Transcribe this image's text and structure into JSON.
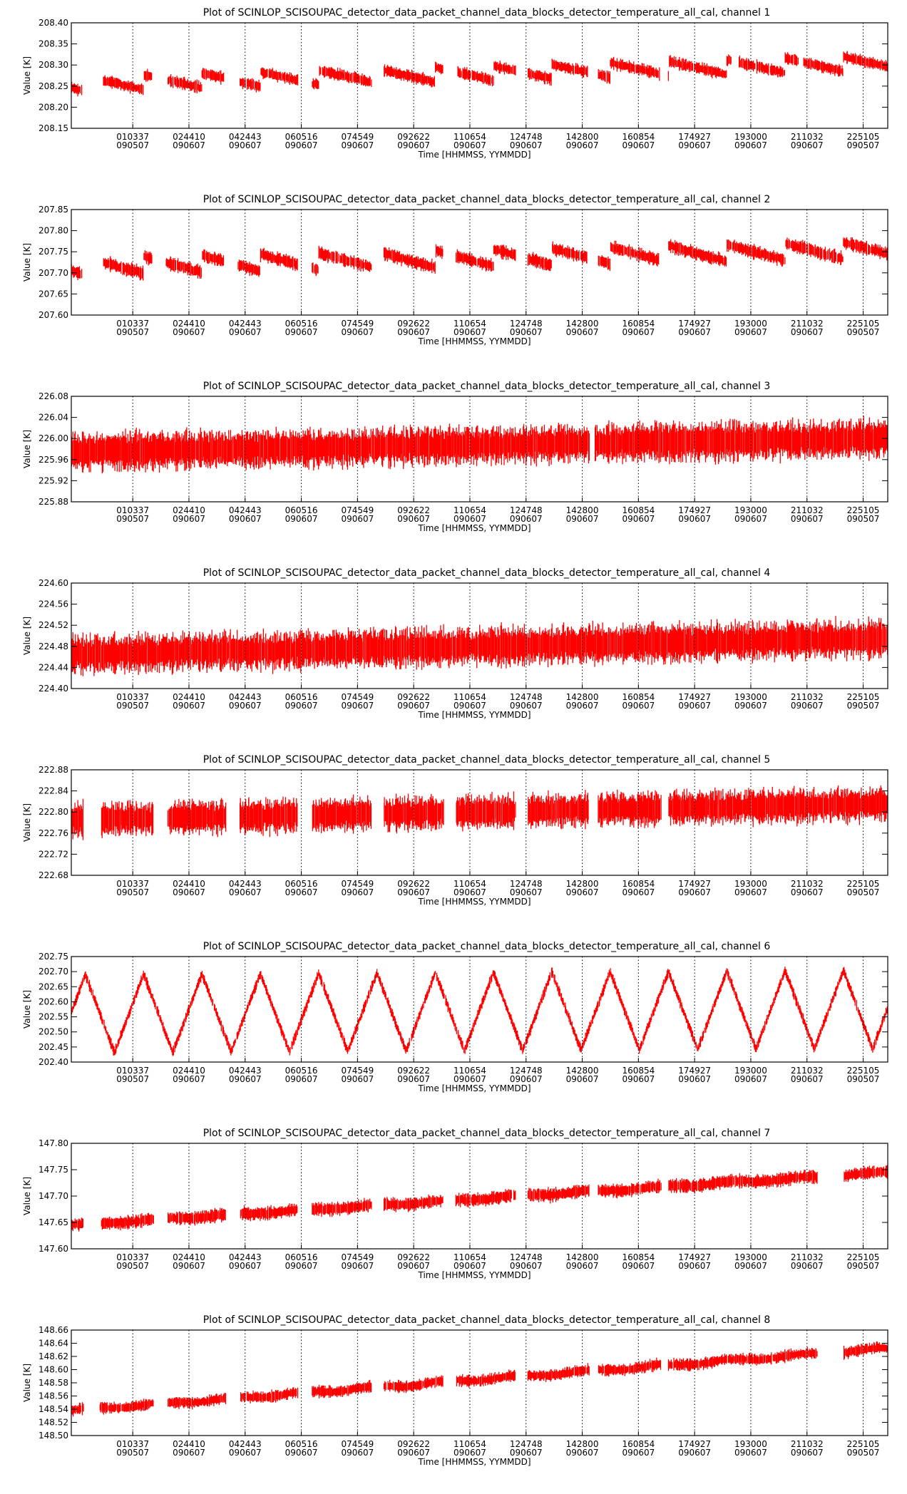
{
  "colors": {
    "data": "#ff0000",
    "axes": "#000000",
    "background": "#ffffff"
  },
  "chart_data": [
    {
      "type": "line",
      "title": "Plot of SCINLOP_SCISOUPAC_detector_data_packet_channel_data_blocks_detector_temperature_all_cal, channel 1",
      "xlabel": "Time [HHMMSS, YYMMDD]",
      "ylabel": "Value [K]",
      "ylim": [
        208.15,
        208.4
      ],
      "yticks": [
        "208.40",
        "208.35",
        "208.30",
        "208.25",
        "208.20",
        "208.15"
      ],
      "xticks": [
        {
          "time": "010337",
          "date": "090507"
        },
        {
          "time": "024410",
          "date": "090607"
        },
        {
          "time": "042443",
          "date": "090607"
        },
        {
          "time": "060516",
          "date": "090607"
        },
        {
          "time": "074549",
          "date": "090607"
        },
        {
          "time": "092622",
          "date": "090607"
        },
        {
          "time": "110654",
          "date": "090607"
        },
        {
          "time": "124748",
          "date": "090607"
        },
        {
          "time": "142800",
          "date": "090607"
        },
        {
          "time": "160854",
          "date": "090607"
        },
        {
          "time": "174927",
          "date": "090607"
        },
        {
          "time": "193000",
          "date": "090607"
        },
        {
          "time": "211032",
          "date": "090607"
        },
        {
          "time": "225105",
          "date": "090507"
        }
      ],
      "grid": "vertical dotted",
      "pattern": "sawtooth",
      "trend": [
        208.255,
        208.305
      ],
      "amplitude": 0.035,
      "noise": 0.018,
      "period": 14,
      "gaps": [
        [
          0.3,
          0.9
        ],
        [
          2.3,
          2.75
        ],
        [
          4.35,
          4.8
        ],
        [
          6.45,
          6.85
        ],
        [
          8.55,
          8.9
        ],
        [
          10.6,
          11.0
        ],
        [
          12.65,
          13.0
        ],
        [
          14.7,
          15.0
        ],
        [
          16.75,
          17.0
        ],
        [
          18.8,
          19.0
        ],
        [
          20.7,
          20.85
        ]
      ]
    },
    {
      "type": "line",
      "title": "Plot of SCINLOP_SCISOUPAC_detector_data_packet_channel_data_blocks_detector_temperature_all_cal, channel 2",
      "xlabel": "Time [HHMMSS, YYMMDD]",
      "ylabel": "Value [K]",
      "ylim": [
        207.6,
        207.85
      ],
      "yticks": [
        "207.85",
        "207.80",
        "207.75",
        "207.70",
        "207.65",
        "207.60"
      ],
      "xticks": [
        {
          "time": "010337",
          "date": "090507"
        },
        {
          "time": "024410",
          "date": "090607"
        },
        {
          "time": "042443",
          "date": "090607"
        },
        {
          "time": "060516",
          "date": "090607"
        },
        {
          "time": "074549",
          "date": "090607"
        },
        {
          "time": "092622",
          "date": "090607"
        },
        {
          "time": "110654",
          "date": "090607"
        },
        {
          "time": "124748",
          "date": "090607"
        },
        {
          "time": "142800",
          "date": "090607"
        },
        {
          "time": "160854",
          "date": "090607"
        },
        {
          "time": "174927",
          "date": "090607"
        },
        {
          "time": "193000",
          "date": "090607"
        },
        {
          "time": "211032",
          "date": "090607"
        },
        {
          "time": "225105",
          "date": "090507"
        }
      ],
      "grid": "vertical dotted",
      "pattern": "sawtooth",
      "trend": [
        207.715,
        207.755
      ],
      "amplitude": 0.04,
      "noise": 0.02,
      "period": 14,
      "gaps": [
        [
          0.3,
          0.9
        ],
        [
          2.3,
          2.7
        ],
        [
          4.35,
          4.75
        ],
        [
          6.45,
          6.85
        ],
        [
          8.55,
          8.9
        ],
        [
          10.6,
          10.95
        ],
        [
          12.65,
          13.0
        ],
        [
          14.7,
          15.0
        ],
        [
          16.75,
          17.0
        ]
      ]
    },
    {
      "type": "line",
      "title": "Plot of SCINLOP_SCISOUPAC_detector_data_packet_channel_data_blocks_detector_temperature_all_cal, channel 3",
      "xlabel": "Time [HHMMSS, YYMMDD]",
      "ylabel": "Value [K]",
      "ylim": [
        225.88,
        226.08
      ],
      "yticks": [
        "226.08",
        "226.04",
        "226.00",
        "225.96",
        "225.92",
        "225.88"
      ],
      "xticks": [
        {
          "time": "010337",
          "date": "090507"
        },
        {
          "time": "024410",
          "date": "090607"
        },
        {
          "time": "042443",
          "date": "090607"
        },
        {
          "time": "060516",
          "date": "090607"
        },
        {
          "time": "074549",
          "date": "090607"
        },
        {
          "time": "092622",
          "date": "090607"
        },
        {
          "time": "110654",
          "date": "090607"
        },
        {
          "time": "124748",
          "date": "090607"
        },
        {
          "time": "142800",
          "date": "090607"
        },
        {
          "time": "160854",
          "date": "090607"
        },
        {
          "time": "174927",
          "date": "090607"
        },
        {
          "time": "193000",
          "date": "090607"
        },
        {
          "time": "211032",
          "date": "090607"
        },
        {
          "time": "225105",
          "date": "090507"
        }
      ],
      "grid": "vertical dotted",
      "pattern": "band",
      "trend": [
        225.975,
        226.0
      ],
      "amplitude": 0.0,
      "noise": 0.045,
      "period": 14,
      "gaps": [
        [
          14.75,
          14.9
        ]
      ]
    },
    {
      "type": "line",
      "title": "Plot of SCINLOP_SCISOUPAC_detector_data_packet_channel_data_blocks_detector_temperature_all_cal, channel 4",
      "xlabel": "Time [HHMMSS, YYMMDD]",
      "ylabel": "Value [K]",
      "ylim": [
        224.4,
        224.6
      ],
      "yticks": [
        "224.60",
        "224.56",
        "224.52",
        "224.48",
        "224.44",
        "224.40"
      ],
      "xticks": [
        {
          "time": "010337",
          "date": "090507"
        },
        {
          "time": "024410",
          "date": "090607"
        },
        {
          "time": "042443",
          "date": "090607"
        },
        {
          "time": "060516",
          "date": "090607"
        },
        {
          "time": "074549",
          "date": "090607"
        },
        {
          "time": "092622",
          "date": "090607"
        },
        {
          "time": "110654",
          "date": "090607"
        },
        {
          "time": "124748",
          "date": "090607"
        },
        {
          "time": "142800",
          "date": "090607"
        },
        {
          "time": "160854",
          "date": "090607"
        },
        {
          "time": "174927",
          "date": "090607"
        },
        {
          "time": "193000",
          "date": "090607"
        },
        {
          "time": "211032",
          "date": "090607"
        },
        {
          "time": "225105",
          "date": "090507"
        }
      ],
      "grid": "vertical dotted",
      "pattern": "band",
      "trend": [
        224.465,
        224.495
      ],
      "amplitude": 0.0,
      "noise": 0.045,
      "period": 14,
      "gaps": []
    },
    {
      "type": "line",
      "title": "Plot of SCINLOP_SCISOUPAC_detector_data_packet_channel_data_blocks_detector_temperature_all_cal, channel 5",
      "xlabel": "Time [HHMMSS, YYMMDD]",
      "ylabel": "Value [K]",
      "ylim": [
        222.68,
        222.88
      ],
      "yticks": [
        "222.88",
        "222.84",
        "222.80",
        "222.76",
        "222.72",
        "222.68"
      ],
      "xticks": [
        {
          "time": "010337",
          "date": "090507"
        },
        {
          "time": "024410",
          "date": "090607"
        },
        {
          "time": "042443",
          "date": "090607"
        },
        {
          "time": "060516",
          "date": "090607"
        },
        {
          "time": "074549",
          "date": "090607"
        },
        {
          "time": "092622",
          "date": "090607"
        },
        {
          "time": "110654",
          "date": "090607"
        },
        {
          "time": "124748",
          "date": "090607"
        },
        {
          "time": "142800",
          "date": "090607"
        },
        {
          "time": "160854",
          "date": "090607"
        },
        {
          "time": "174927",
          "date": "090607"
        },
        {
          "time": "193000",
          "date": "090607"
        },
        {
          "time": "211032",
          "date": "090607"
        },
        {
          "time": "225105",
          "date": "090507"
        }
      ],
      "grid": "vertical dotted",
      "pattern": "band",
      "trend": [
        222.785,
        222.815
      ],
      "amplitude": 0.0,
      "noise": 0.04,
      "period": 14,
      "gaps": [
        [
          0.35,
          0.85
        ],
        [
          2.35,
          2.75
        ],
        [
          4.4,
          4.8
        ],
        [
          6.45,
          6.85
        ],
        [
          8.55,
          8.9
        ],
        [
          10.6,
          10.95
        ],
        [
          12.65,
          13.0
        ],
        [
          14.75,
          15.0
        ],
        [
          16.8,
          17.0
        ]
      ]
    },
    {
      "type": "line",
      "title": "Plot of SCINLOP_SCISOUPAC_detector_data_packet_channel_data_blocks_detector_temperature_all_cal, channel 6",
      "xlabel": "Time [HHMMSS, YYMMDD]",
      "ylabel": "Value [K]",
      "ylim": [
        202.4,
        202.75
      ],
      "yticks": [
        "202.75",
        "202.70",
        "202.65",
        "202.60",
        "202.55",
        "202.50",
        "202.45",
        "202.40"
      ],
      "xticks": [
        {
          "time": "010337",
          "date": "090507"
        },
        {
          "time": "024410",
          "date": "090607"
        },
        {
          "time": "042443",
          "date": "090607"
        },
        {
          "time": "060516",
          "date": "090607"
        },
        {
          "time": "074549",
          "date": "090607"
        },
        {
          "time": "092622",
          "date": "090607"
        },
        {
          "time": "110654",
          "date": "090607"
        },
        {
          "time": "124748",
          "date": "090607"
        },
        {
          "time": "142800",
          "date": "090607"
        },
        {
          "time": "160854",
          "date": "090607"
        },
        {
          "time": "174927",
          "date": "090607"
        },
        {
          "time": "193000",
          "date": "090607"
        },
        {
          "time": "211032",
          "date": "090607"
        },
        {
          "time": "225105",
          "date": "090507"
        }
      ],
      "grid": "vertical dotted",
      "pattern": "triangle",
      "trend": [
        202.56,
        202.575
      ],
      "amplitude": 0.13,
      "noise": 0.02,
      "period": 14,
      "gaps": []
    },
    {
      "type": "line",
      "title": "Plot of SCINLOP_SCISOUPAC_detector_data_packet_channel_data_blocks_detector_temperature_all_cal, channel 7",
      "xlabel": "Time [HHMMSS, YYMMDD]",
      "ylabel": "Value [K]",
      "ylim": [
        147.6,
        147.8
      ],
      "yticks": [
        "147.80",
        "147.75",
        "147.70",
        "147.65",
        "147.60"
      ],
      "xticks": [
        {
          "time": "010337",
          "date": "090507"
        },
        {
          "time": "024410",
          "date": "090607"
        },
        {
          "time": "042443",
          "date": "090607"
        },
        {
          "time": "060516",
          "date": "090607"
        },
        {
          "time": "074549",
          "date": "090607"
        },
        {
          "time": "092622",
          "date": "090607"
        },
        {
          "time": "110654",
          "date": "090607"
        },
        {
          "time": "124748",
          "date": "090607"
        },
        {
          "time": "142800",
          "date": "090607"
        },
        {
          "time": "160854",
          "date": "090607"
        },
        {
          "time": "174927",
          "date": "090607"
        },
        {
          "time": "193000",
          "date": "090607"
        },
        {
          "time": "211032",
          "date": "090607"
        },
        {
          "time": "225105",
          "date": "090507"
        }
      ],
      "grid": "vertical dotted",
      "pattern": "steps",
      "trend": [
        147.645,
        147.745
      ],
      "amplitude": 0.0,
      "noise": 0.016,
      "period": 14,
      "gaps": [
        [
          0.35,
          0.8
        ],
        [
          2.35,
          2.75
        ],
        [
          4.4,
          4.8
        ],
        [
          6.45,
          6.85
        ],
        [
          8.55,
          8.9
        ],
        [
          10.6,
          10.95
        ],
        [
          12.65,
          13.0
        ],
        [
          14.75,
          15.0
        ],
        [
          16.8,
          17.0
        ],
        [
          21.25,
          22.0
        ]
      ]
    },
    {
      "type": "line",
      "title": "Plot of SCINLOP_SCISOUPAC_detector_data_packet_channel_data_blocks_detector_temperature_all_cal, channel 8",
      "xlabel": "Time [HHMMSS, YYMMDD]",
      "ylabel": "Value [K]",
      "ylim": [
        148.5,
        148.66
      ],
      "yticks": [
        "148.66",
        "148.64",
        "148.62",
        "148.60",
        "148.58",
        "148.56",
        "148.54",
        "148.52",
        "148.50"
      ],
      "xticks": [
        {
          "time": "010337",
          "date": "090507"
        },
        {
          "time": "024410",
          "date": "090607"
        },
        {
          "time": "042443",
          "date": "090607"
        },
        {
          "time": "060516",
          "date": "090607"
        },
        {
          "time": "074549",
          "date": "090607"
        },
        {
          "time": "092622",
          "date": "090607"
        },
        {
          "time": "110654",
          "date": "090607"
        },
        {
          "time": "124748",
          "date": "090607"
        },
        {
          "time": "142800",
          "date": "090607"
        },
        {
          "time": "160854",
          "date": "090607"
        },
        {
          "time": "174927",
          "date": "090607"
        },
        {
          "time": "193000",
          "date": "090607"
        },
        {
          "time": "211032",
          "date": "090607"
        },
        {
          "time": "225105",
          "date": "090507"
        }
      ],
      "grid": "vertical dotted",
      "pattern": "steps",
      "trend": [
        148.538,
        148.632
      ],
      "amplitude": 0.0,
      "noise": 0.011,
      "period": 14,
      "gaps": [
        [
          0.35,
          0.8
        ],
        [
          2.35,
          2.75
        ],
        [
          4.4,
          4.8
        ],
        [
          6.45,
          6.85
        ],
        [
          8.55,
          8.9
        ],
        [
          10.6,
          10.95
        ],
        [
          12.65,
          13.0
        ],
        [
          14.75,
          15.0
        ],
        [
          16.8,
          17.0
        ],
        [
          21.25,
          22.0
        ]
      ]
    }
  ]
}
